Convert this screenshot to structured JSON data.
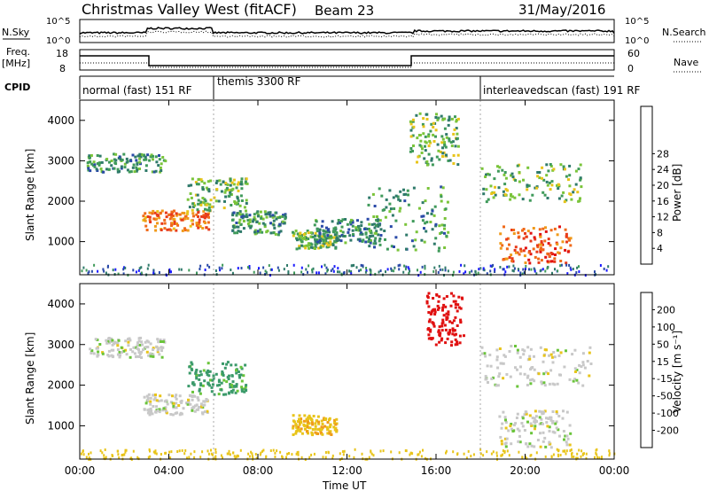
{
  "header": {
    "title": "Christmas Valley West (fitACF)",
    "beam": "Beam 23",
    "date": "31/May/2016"
  },
  "noise_panel": {
    "left_label": "N.Sky",
    "right_label": "N.Search",
    "left_ticks": [
      "10^5",
      "10^0"
    ],
    "right_ticks": [
      "10^5",
      "10^0"
    ]
  },
  "freq_panel": {
    "left_label_1": "Freq.",
    "left_label_2": "[MHz]",
    "right_label": "Nave",
    "left_ticks": [
      "18",
      "8"
    ],
    "right_ticks": [
      "60",
      "0"
    ]
  },
  "cpid_panel": {
    "label": "CPID",
    "modes": [
      "normal (fast) 151 RF",
      "themis 3300 RF",
      "interleavedscan (fast) 191 RF"
    ]
  },
  "time_axis": {
    "label": "Time UT",
    "ticks": [
      "00:00",
      "04:00",
      "08:00",
      "12:00",
      "16:00",
      "20:00",
      "00:00"
    ]
  },
  "range_axis": {
    "label": "Slant Range [km]",
    "ticks": [
      "1000",
      "2000",
      "3000",
      "4000"
    ]
  },
  "power_scale": {
    "label": "Power [dB]",
    "ticks": [
      "4",
      "8",
      "12",
      "16",
      "20",
      "24",
      "28"
    ],
    "colors": [
      "#1a1aff",
      "#2a4aa8",
      "#2f7a6a",
      "#3f9a5a",
      "#7ac43a",
      "#e8c41a",
      "#f09a1a",
      "#f06a1a",
      "#e83a1a",
      "#e01010"
    ]
  },
  "velocity_scale": {
    "label": "Velocity [m s⁻¹]",
    "ticks": [
      "200",
      "100",
      "50",
      "15",
      "-15",
      "-50",
      "-100",
      "-200"
    ],
    "colors": [
      "#2233bb",
      "#2a6ab0",
      "#3a9a6a",
      "#6ac43a",
      "#c8c8c8",
      "#e8c41a",
      "#f09a1a",
      "#f0661a",
      "#e01010"
    ]
  },
  "chart_data": {
    "type": "heatmap",
    "x_range_hours": [
      0,
      24
    ],
    "y_range_km": [
      180,
      4500
    ],
    "mode_boundaries_hours": [
      6,
      18
    ],
    "power_regions": [
      {
        "t": [
          0.3,
          3.8
        ],
        "r": [
          2750,
          3200
        ],
        "db": 10
      },
      {
        "t": [
          2.8,
          5.8
        ],
        "r": [
          1300,
          1800
        ],
        "db": 22
      },
      {
        "t": [
          4.8,
          7.5
        ],
        "r": [
          1800,
          2600
        ],
        "db": 12
      },
      {
        "t": [
          6.8,
          9.2
        ],
        "r": [
          1200,
          1800
        ],
        "db": 10
      },
      {
        "t": [
          9.5,
          11.5
        ],
        "r": [
          850,
          1300
        ],
        "db": 12
      },
      {
        "t": [
          10.5,
          13.5
        ],
        "r": [
          1000,
          1600
        ],
        "db": 8
      },
      {
        "t": [
          12.8,
          16.5
        ],
        "r": [
          800,
          2400
        ],
        "db": 10
      },
      {
        "t": [
          14.8,
          17.0
        ],
        "r": [
          2900,
          4200
        ],
        "db": 12
      },
      {
        "t": [
          18.0,
          22.5
        ],
        "r": [
          2000,
          3000
        ],
        "db": 12
      },
      {
        "t": [
          18.8,
          22.0
        ],
        "r": [
          500,
          1400
        ],
        "db": 24
      }
    ],
    "velocity_regions": [
      {
        "t": [
          0.3,
          3.8
        ],
        "r": [
          2700,
          3200
        ],
        "v": 0
      },
      {
        "t": [
          2.8,
          5.8
        ],
        "r": [
          1300,
          1800
        ],
        "v": 0
      },
      {
        "t": [
          4.8,
          7.5
        ],
        "r": [
          1800,
          2600
        ],
        "v": 60
      },
      {
        "t": [
          9.5,
          11.5
        ],
        "r": [
          800,
          1300
        ],
        "v": -40
      },
      {
        "t": [
          15.5,
          17.2
        ],
        "r": [
          3000,
          4300
        ],
        "v": -300
      },
      {
        "t": [
          18.0,
          23.0
        ],
        "r": [
          2000,
          3000
        ],
        "v": 0
      },
      {
        "t": [
          18.8,
          22.0
        ],
        "r": [
          500,
          1400
        ],
        "v": 0
      }
    ]
  }
}
